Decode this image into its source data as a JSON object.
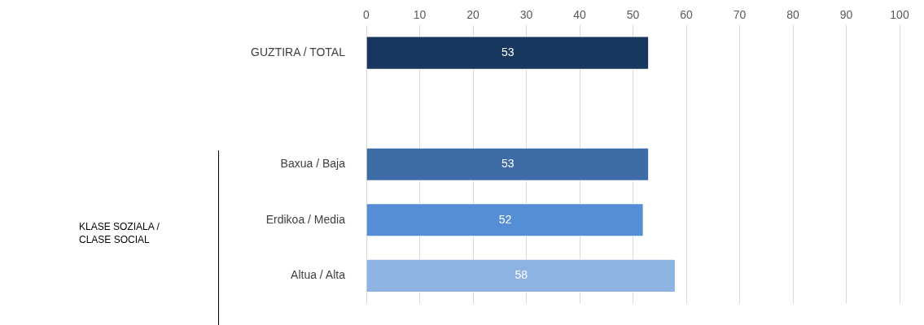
{
  "chart_data": {
    "type": "bar",
    "orientation": "horizontal",
    "categories": [
      "GUZTIRA / TOTAL",
      null,
      "Baxua / Baja",
      "Erdikoa / Media",
      "Altua / Alta"
    ],
    "values": [
      53,
      null,
      53,
      52,
      58
    ],
    "colors": [
      "#17375e",
      "#3d6ca6",
      "#3d6ca6",
      "#558ed5",
      "#8db3e2"
    ],
    "xlim": [
      0,
      100
    ],
    "xticks": [
      0,
      10,
      20,
      30,
      40,
      50,
      60,
      70,
      80,
      90,
      100
    ],
    "grid": "x",
    "data_labels": true,
    "legend": false,
    "annotations": [
      "KLASE SOZIALA / CLASE SOCIAL"
    ]
  }
}
